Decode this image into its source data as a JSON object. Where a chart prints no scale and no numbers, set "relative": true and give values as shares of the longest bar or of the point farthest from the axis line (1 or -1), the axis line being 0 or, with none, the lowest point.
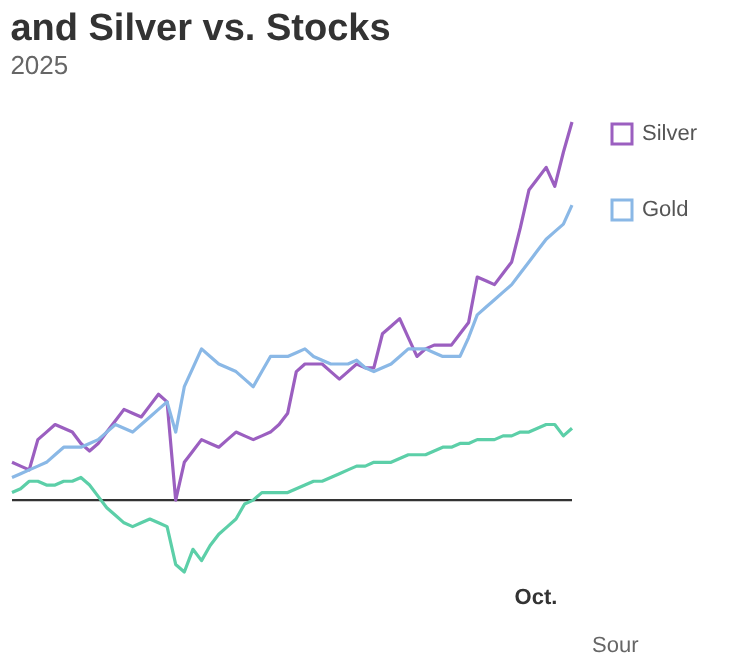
{
  "chart_data": {
    "type": "line",
    "title": "and Silver vs. Stocks",
    "subtitle": "2025",
    "relative": true,
    "categories": [
      null,
      null,
      null,
      null,
      null,
      null,
      null,
      null,
      null,
      null,
      null,
      null,
      null,
      null,
      null,
      null,
      null,
      null,
      null,
      null,
      null,
      null,
      null,
      null,
      null,
      null,
      null,
      null,
      null,
      null,
      null,
      null,
      null,
      null,
      null,
      null,
      null,
      null,
      null,
      null,
      null,
      null,
      null,
      null,
      null,
      null,
      null,
      null,
      null,
      null,
      null,
      null,
      null,
      null,
      null,
      null,
      null,
      null,
      null,
      null,
      null,
      null,
      null,
      null,
      null,
      null
    ],
    "series": [
      {
        "name": "Silver",
        "color": "#9b5fc0",
        "values": [
          0.1,
          0.09,
          0.08,
          0.16,
          0.18,
          0.2,
          0.19,
          0.18,
          0.15,
          0.13,
          0.15,
          0.18,
          0.21,
          0.24,
          0.23,
          0.22,
          0.25,
          0.28,
          0.26,
          0.0,
          0.1,
          0.13,
          0.16,
          0.15,
          0.14,
          0.16,
          0.18,
          0.17,
          0.16,
          0.17,
          0.18,
          0.2,
          0.23,
          0.34,
          0.36,
          0.36,
          0.36,
          0.34,
          0.32,
          0.34,
          0.36,
          0.35,
          0.35,
          0.44,
          0.46,
          0.48,
          0.43,
          0.38,
          0.4,
          0.41,
          0.41,
          0.41,
          0.44,
          0.47,
          0.59,
          0.58,
          0.57,
          0.6,
          0.63,
          0.72,
          0.82,
          0.85,
          0.88,
          0.83,
          0.92,
          1.0
        ]
      },
      {
        "name": "Gold",
        "color": "#8ab8e6",
        "values": [
          0.06,
          0.07,
          0.08,
          0.09,
          0.1,
          0.12,
          0.14,
          0.14,
          0.14,
          0.15,
          0.16,
          0.18,
          0.2,
          0.19,
          0.18,
          0.2,
          0.22,
          0.24,
          0.26,
          0.18,
          0.3,
          0.35,
          0.4,
          0.38,
          0.36,
          0.35,
          0.34,
          0.32,
          0.3,
          0.34,
          0.38,
          0.38,
          0.38,
          0.39,
          0.4,
          0.38,
          0.37,
          0.36,
          0.36,
          0.36,
          0.37,
          0.35,
          0.34,
          0.35,
          0.36,
          0.38,
          0.4,
          0.4,
          0.4,
          0.39,
          0.38,
          0.38,
          0.38,
          0.43,
          0.49,
          0.51,
          0.53,
          0.55,
          0.57,
          0.6,
          0.63,
          0.66,
          0.69,
          0.71,
          0.73,
          0.78
        ]
      },
      {
        "color": "#5ccfa8",
        "values": [
          0.02,
          0.03,
          0.05,
          0.05,
          0.04,
          0.04,
          0.05,
          0.05,
          0.06,
          0.04,
          0.01,
          -0.02,
          -0.04,
          -0.06,
          -0.07,
          -0.06,
          -0.05,
          -0.06,
          -0.07,
          -0.17,
          -0.19,
          -0.13,
          -0.16,
          -0.12,
          -0.09,
          -0.07,
          -0.05,
          -0.01,
          0.0,
          0.02,
          0.02,
          0.02,
          0.02,
          0.03,
          0.04,
          0.05,
          0.05,
          0.06,
          0.07,
          0.08,
          0.09,
          0.09,
          0.1,
          0.1,
          0.1,
          0.11,
          0.12,
          0.12,
          0.12,
          0.13,
          0.14,
          0.14,
          0.15,
          0.15,
          0.16,
          0.16,
          0.16,
          0.17,
          0.17,
          0.18,
          0.18,
          0.19,
          0.2,
          0.2,
          0.17,
          0.19
        ]
      }
    ],
    "legend": "right",
    "annotations": [
      "Oct.",
      "Sour"
    ]
  }
}
